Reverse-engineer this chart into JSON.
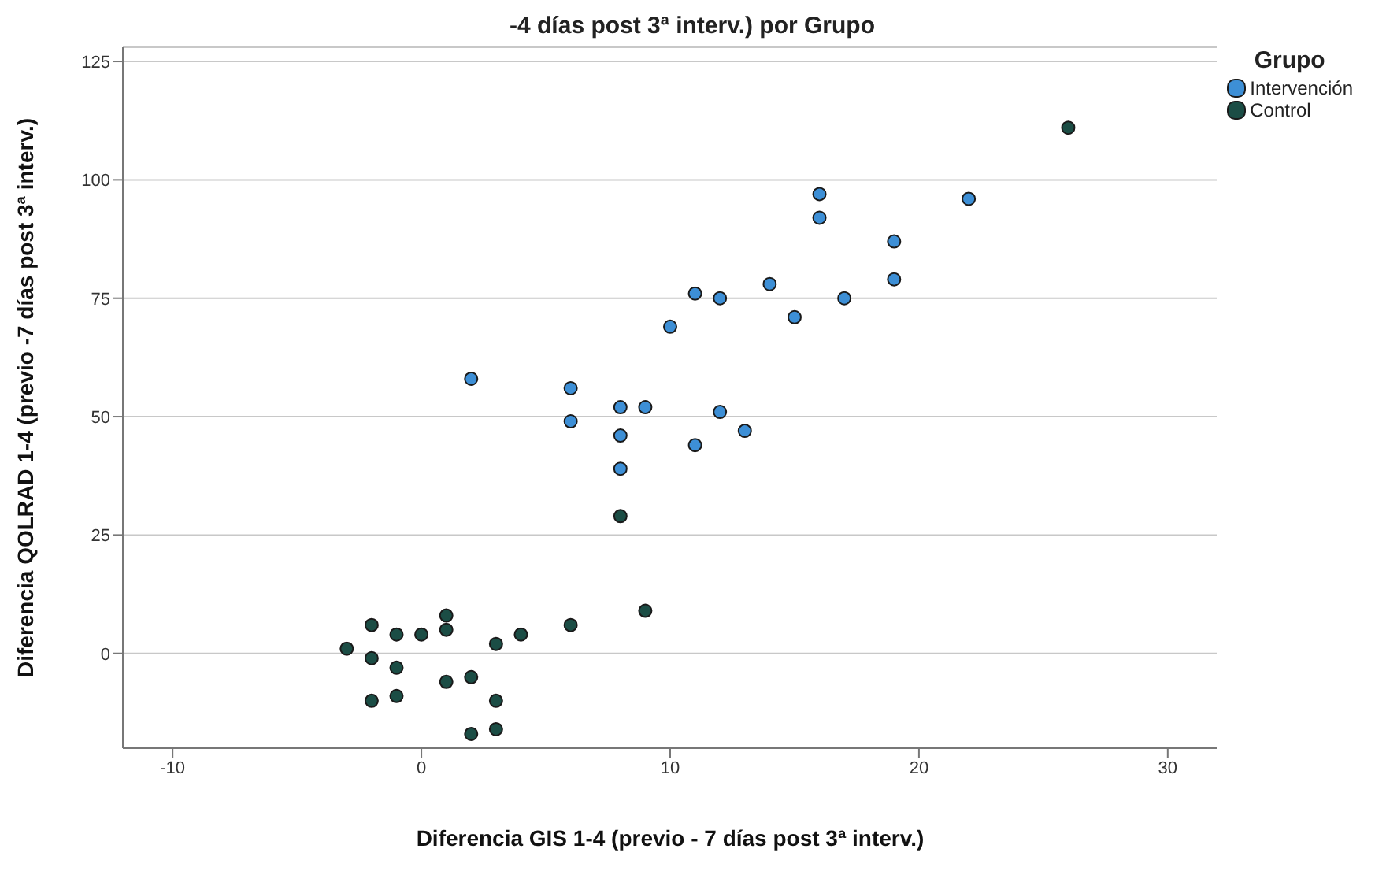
{
  "chart_data": {
    "type": "scatter",
    "title": "-4 días post 3ª interv.) por Grupo",
    "xlabel": "Diferencia GIS 1-4 (previo - 7 días post 3ª interv.)",
    "ylabel": "Diferencia QOLRAD 1-4 (previo -7 días post 3ª interv.)",
    "legend_title": "Grupo",
    "legend": "top right",
    "grid": "y",
    "marker": "circle",
    "xlim": [
      -12,
      32
    ],
    "ylim": [
      -20,
      128
    ],
    "xticks": [
      -10,
      0,
      10,
      20,
      30
    ],
    "yticks": [
      0,
      25,
      50,
      75,
      100,
      125
    ],
    "series": [
      {
        "name": "Intervención",
        "color": "#3d8fd6",
        "x": [
          2,
          6,
          6,
          8,
          9,
          8,
          8,
          12,
          13,
          11,
          10,
          11,
          12,
          14,
          15,
          17,
          19,
          19,
          22,
          16,
          16
        ],
        "values": [
          58,
          56,
          49,
          52,
          52,
          46,
          39,
          51,
          47,
          44,
          69,
          76,
          75,
          78,
          71,
          75,
          87,
          79,
          96,
          97,
          92
        ]
      },
      {
        "name": "Control",
        "color": "#1b4d45",
        "x": [
          -3,
          -2,
          -2,
          -2,
          -1,
          -1,
          -1,
          0,
          1,
          1,
          1,
          2,
          2,
          3,
          3,
          3,
          4,
          6,
          8,
          9,
          26
        ],
        "values": [
          1,
          6,
          -1,
          -10,
          4,
          -3,
          -9,
          4,
          8,
          5,
          -6,
          -5,
          -17,
          2,
          -10,
          -16,
          4,
          6,
          29,
          9,
          111
        ]
      }
    ]
  }
}
